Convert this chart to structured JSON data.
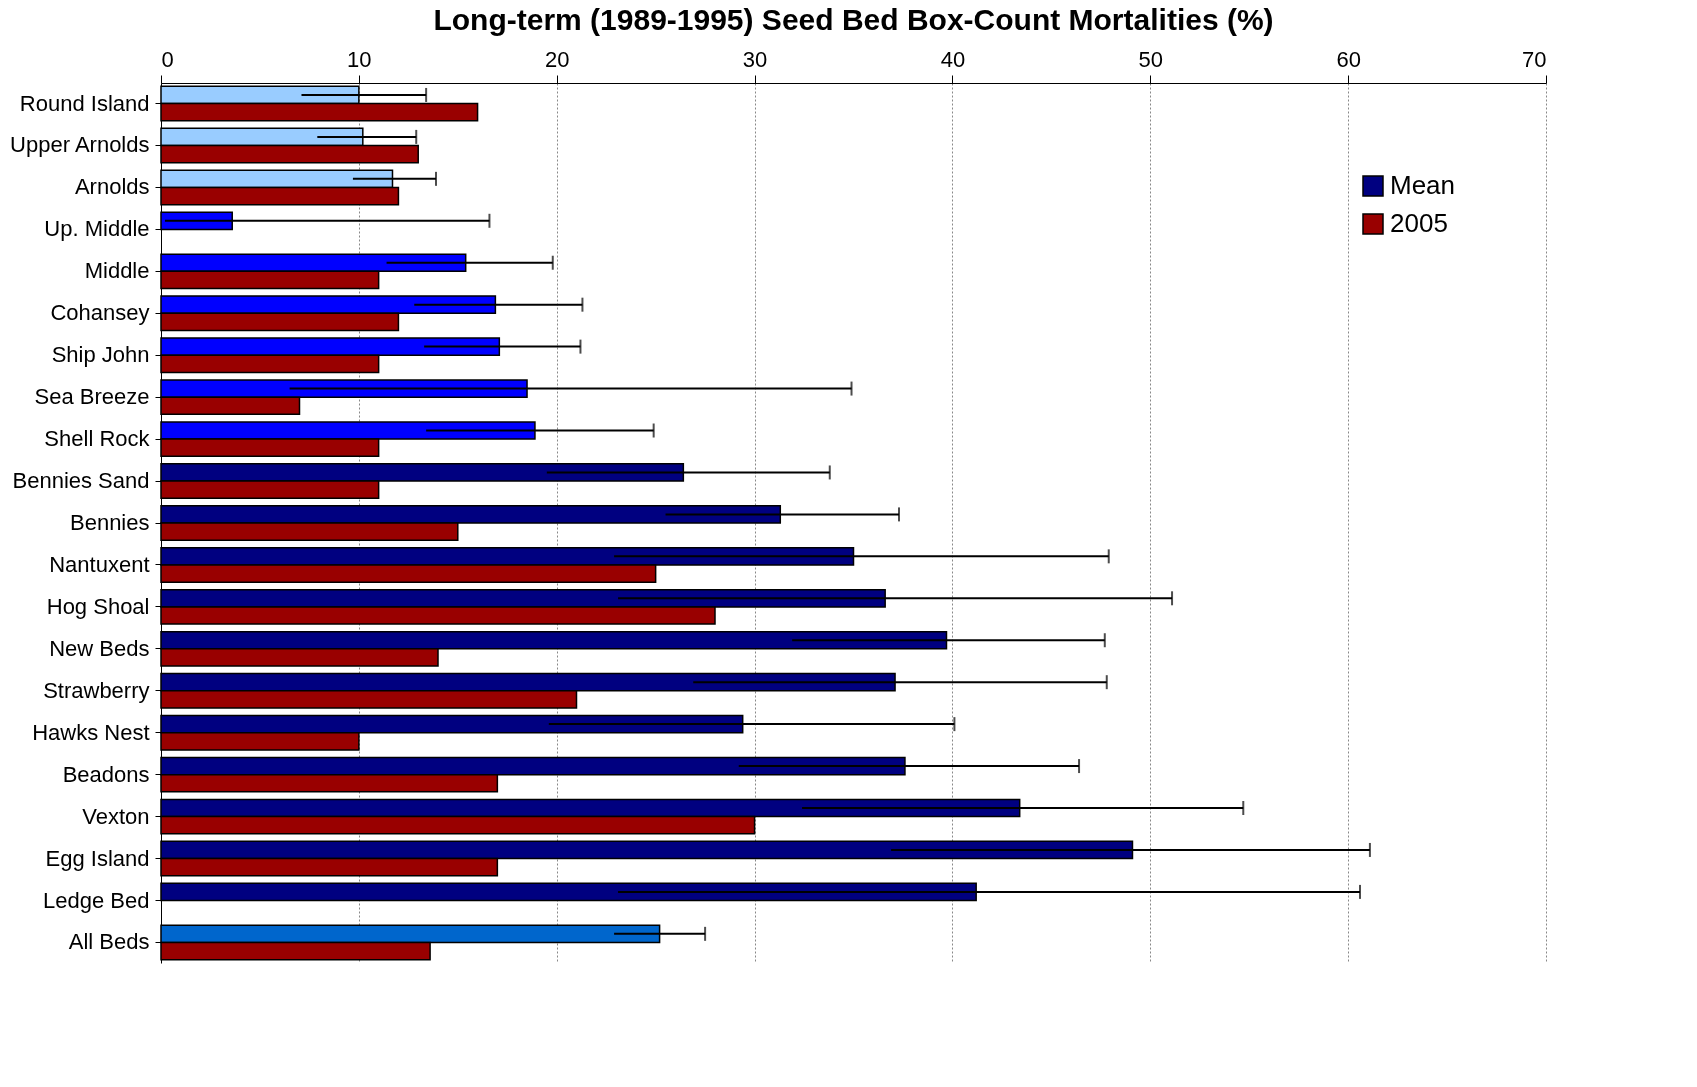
{
  "chart_data": {
    "type": "bar",
    "orientation": "horizontal",
    "title": "Long-term (1989-1995) Seed Bed Box-Count Mortalities (%)",
    "categories": [
      "Round Island",
      "Upper Arnolds",
      "Arnolds",
      "Up. Middle",
      "Middle",
      "Cohansey",
      "Ship John",
      "Sea Breeze",
      "Shell Rock",
      "Bennies Sand",
      "Bennies",
      "Nantuxent",
      "Hog Shoal",
      "New Beds",
      "Strawberry",
      "Hawks Nest",
      "Beadons",
      "Vexton",
      "Egg Island",
      "Ledge Bed",
      "All Beds"
    ],
    "series": [
      {
        "name": "Mean",
        "color": "#000080",
        "colors": [
          "#99ccff",
          "#99ccff",
          "#99ccff",
          "#0000ff",
          "#0000ff",
          "#0000ff",
          "#0000ff",
          "#0000ff",
          "#0000ff",
          "#000080",
          "#000080",
          "#000080",
          "#000080",
          "#000080",
          "#000080",
          "#000080",
          "#000080",
          "#000080",
          "#000080",
          "#000080",
          "#0066cc"
        ],
        "values": [
          10.0,
          10.2,
          11.7,
          3.6,
          15.4,
          16.9,
          17.1,
          18.5,
          18.9,
          26.4,
          31.3,
          35.0,
          36.6,
          39.7,
          37.1,
          29.4,
          37.6,
          43.4,
          49.1,
          41.2,
          25.2
        ],
        "errors": [
          [
            7.1,
            13.4
          ],
          [
            7.9,
            12.9
          ],
          [
            9.7,
            13.9
          ],
          [
            0.2,
            16.6
          ],
          [
            11.4,
            19.8
          ],
          [
            12.8,
            21.3
          ],
          [
            13.3,
            21.2
          ],
          [
            6.5,
            34.9
          ],
          [
            13.4,
            24.9
          ],
          [
            19.5,
            33.8
          ],
          [
            25.5,
            37.3
          ],
          [
            22.9,
            47.9
          ],
          [
            23.1,
            51.1
          ],
          [
            31.9,
            47.7
          ],
          [
            26.9,
            47.8
          ],
          [
            19.6,
            40.1
          ],
          [
            29.2,
            46.4
          ],
          [
            32.4,
            54.7
          ],
          [
            36.9,
            61.1
          ],
          [
            23.1,
            60.6
          ],
          [
            22.9,
            27.5
          ]
        ]
      },
      {
        "name": "2005",
        "color": "#990000",
        "values": [
          16,
          13,
          12,
          null,
          11,
          12,
          11,
          7,
          11,
          11,
          15,
          25,
          28,
          14,
          21,
          10,
          17,
          30,
          17,
          null,
          13.6
        ]
      }
    ],
    "xlim": [
      0,
      70
    ],
    "xticks": [
      0,
      10,
      20,
      30,
      40,
      50,
      60,
      70
    ],
    "grid": "x",
    "legend": "top right"
  }
}
